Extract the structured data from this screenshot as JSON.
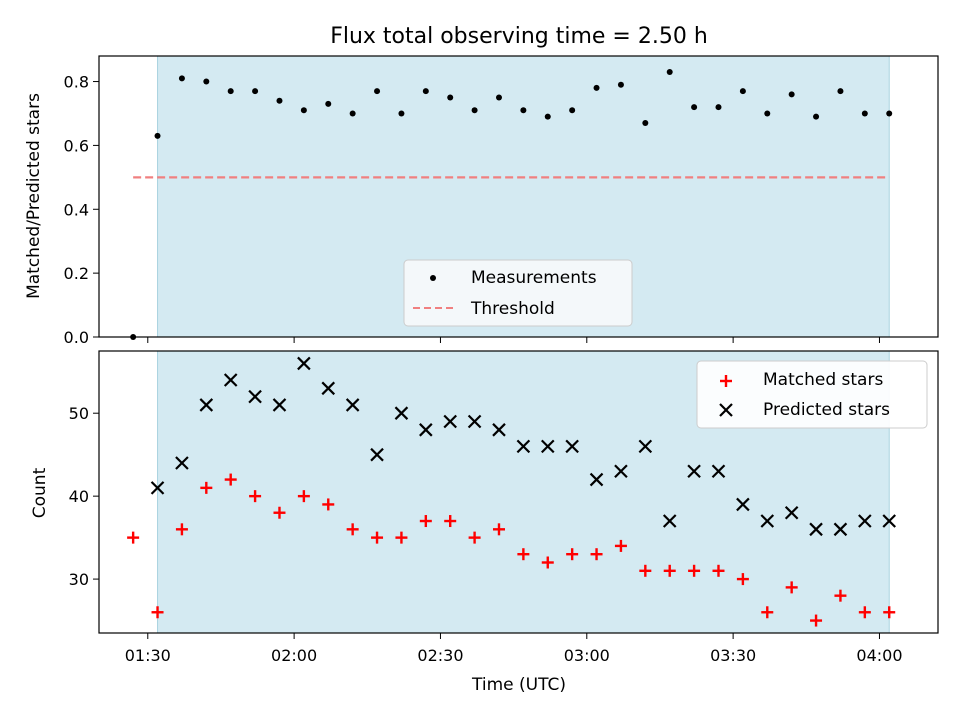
{
  "chart_data": [
    {
      "type": "scatter",
      "title": "Flux total observing time = 2.50 h",
      "xlabel": "",
      "ylabel": "Matched/Predicted stars",
      "ylim": [
        0,
        0.88
      ],
      "yticks": [
        "0.0",
        "0.2",
        "0.4",
        "0.6",
        "0.8"
      ],
      "legend_location": "lower-center",
      "shaded_region": {
        "start": "01:32",
        "end": "04:02",
        "color": "#d4eaf2"
      },
      "series": [
        {
          "name": "Measurements",
          "marker": "dot",
          "color": "#000000",
          "x": [
            "01:27",
            "01:32",
            "01:37",
            "01:42",
            "01:47",
            "01:52",
            "01:57",
            "02:02",
            "02:07",
            "02:12",
            "02:17",
            "02:22",
            "02:27",
            "02:32",
            "02:37",
            "02:42",
            "02:47",
            "02:52",
            "02:57",
            "03:02",
            "03:07",
            "03:12",
            "03:17",
            "03:22",
            "03:27",
            "03:32",
            "03:37",
            "03:42",
            "03:47",
            "03:52",
            "03:57",
            "04:02"
          ],
          "y": [
            0.0,
            0.63,
            0.81,
            0.8,
            0.77,
            0.77,
            0.74,
            0.71,
            0.73,
            0.7,
            0.77,
            0.7,
            0.77,
            0.75,
            0.71,
            0.75,
            0.71,
            0.69,
            0.71,
            0.78,
            0.79,
            0.67,
            0.83,
            0.72,
            0.72,
            0.77,
            0.7,
            0.76,
            0.69,
            0.77,
            0.7,
            0.7
          ]
        },
        {
          "name": "Threshold",
          "marker": "dashed-line",
          "color": "#f08080",
          "x": [
            "01:27",
            "04:02"
          ],
          "y": [
            0.5,
            0.5
          ]
        }
      ]
    },
    {
      "type": "scatter",
      "title": "",
      "xlabel": "Time (UTC)",
      "ylabel": "Count",
      "ylim": [
        23.5,
        57.5
      ],
      "yticks": [
        "30",
        "40",
        "50"
      ],
      "xlim": [
        "01:20",
        "04:12"
      ],
      "xticks": [
        "01:30",
        "02:00",
        "02:30",
        "03:00",
        "03:30",
        "04:00"
      ],
      "legend_location": "top-right",
      "series": [
        {
          "name": "Matched stars",
          "marker": "plus",
          "color": "#ff0000",
          "x": [
            "01:27",
            "01:32",
            "01:37",
            "01:42",
            "01:47",
            "01:52",
            "01:57",
            "02:02",
            "02:07",
            "02:12",
            "02:17",
            "02:22",
            "02:27",
            "02:32",
            "02:37",
            "02:42",
            "02:47",
            "02:52",
            "02:57",
            "03:02",
            "03:07",
            "03:12",
            "03:17",
            "03:22",
            "03:27",
            "03:32",
            "03:37",
            "03:42",
            "03:47",
            "03:52",
            "03:57",
            "04:02"
          ],
          "y": [
            35,
            26,
            36,
            41,
            42,
            40,
            38,
            40,
            39,
            36,
            35,
            35,
            37,
            37,
            35,
            36,
            33,
            32,
            33,
            33,
            34,
            31,
            31,
            31,
            31,
            30,
            26,
            29,
            25,
            28,
            26,
            26
          ]
        },
        {
          "name": "Predicted stars",
          "marker": "x",
          "color": "#000000",
          "x": [
            "01:32",
            "01:37",
            "01:42",
            "01:47",
            "01:52",
            "01:57",
            "02:02",
            "02:07",
            "02:12",
            "02:17",
            "02:22",
            "02:27",
            "02:32",
            "02:37",
            "02:42",
            "02:47",
            "02:52",
            "02:57",
            "03:02",
            "03:07",
            "03:12",
            "03:17",
            "03:22",
            "03:27",
            "03:32",
            "03:37",
            "03:42",
            "03:47",
            "03:52",
            "03:57",
            "04:02"
          ],
          "y": [
            41,
            44,
            51,
            54,
            52,
            51,
            56,
            53,
            51,
            45,
            50,
            48,
            49,
            49,
            48,
            46,
            46,
            46,
            42,
            43,
            46,
            37,
            43,
            43,
            39,
            37,
            38,
            36,
            36,
            37,
            37
          ]
        }
      ]
    }
  ]
}
